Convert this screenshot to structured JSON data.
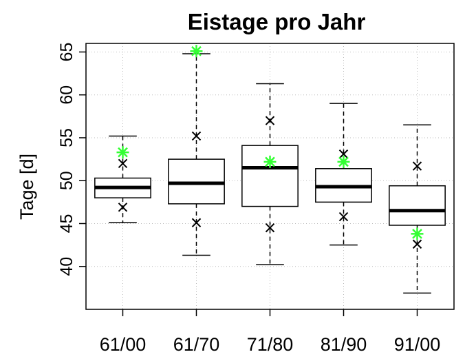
{
  "chart_data": {
    "type": "boxplot",
    "title": "Eistage pro Jahr",
    "xlabel": "",
    "ylabel": "Tage [d]",
    "ylim": [
      35,
      66
    ],
    "y_ticks": [
      40,
      45,
      50,
      55,
      60,
      65
    ],
    "grid": true,
    "colors": {
      "box": "#000000",
      "green_marker": "#33ff33",
      "cross_marker": "#000000",
      "grid": "#bbbbbb"
    },
    "categories": [
      "61/00",
      "61/70",
      "71/80",
      "81/90",
      "91/00"
    ],
    "boxes": [
      {
        "category": "61/00",
        "whisker_low": 45.1,
        "q1": 48.0,
        "median": 49.2,
        "q3": 50.3,
        "whisker_high": 55.2,
        "cross_low": 46.9,
        "cross_high": 52.0,
        "green": 53.3
      },
      {
        "category": "61/70",
        "whisker_low": 41.3,
        "q1": 47.3,
        "median": 49.7,
        "q3": 52.5,
        "whisker_high": 64.8,
        "cross_low": 45.1,
        "cross_high": 55.2,
        "green": 65.1
      },
      {
        "category": "71/80",
        "whisker_low": 40.2,
        "q1": 47.0,
        "median": 51.5,
        "q3": 54.1,
        "whisker_high": 61.3,
        "cross_low": 44.5,
        "cross_high": 57.0,
        "green": 52.2
      },
      {
        "category": "81/90",
        "whisker_low": 42.5,
        "q1": 47.5,
        "median": 49.3,
        "q3": 51.4,
        "whisker_high": 59.0,
        "cross_low": 45.8,
        "cross_high": 53.1,
        "green": 52.2
      },
      {
        "category": "91/00",
        "whisker_low": 36.9,
        "q1": 44.8,
        "median": 46.5,
        "q3": 49.4,
        "whisker_high": 56.5,
        "cross_low": 42.6,
        "cross_high": 51.7,
        "green": 43.8
      }
    ]
  }
}
